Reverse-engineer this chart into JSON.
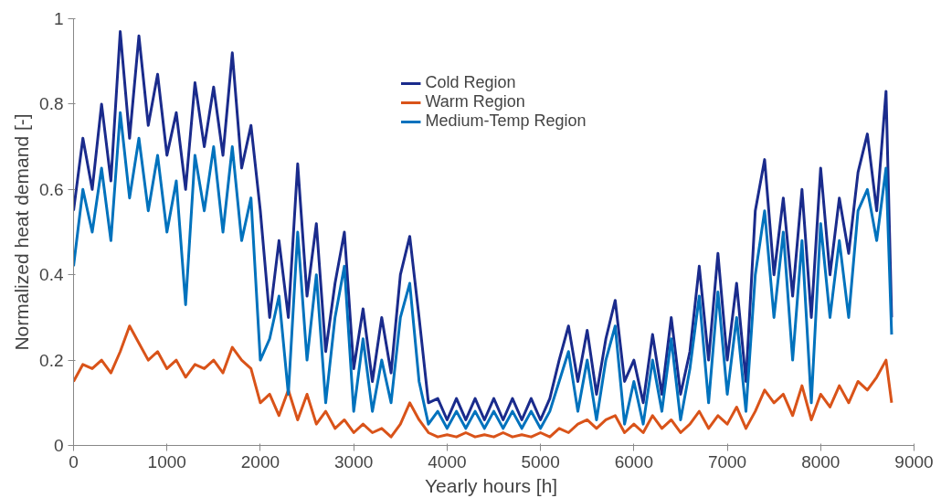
{
  "chart_data": {
    "type": "line",
    "xlabel": "Yearly hours  [h]",
    "ylabel": "Normalized heat demand [-]",
    "xlim": [
      0,
      9000
    ],
    "ylim": [
      0,
      1
    ],
    "xticks": [
      0,
      1000,
      2000,
      3000,
      4000,
      5000,
      6000,
      7000,
      8000,
      9000
    ],
    "yticks": [
      0,
      0.2,
      0.4,
      0.6,
      0.8,
      1
    ],
    "grid": false,
    "legend": "top",
    "line_style": "solid",
    "x": [
      0,
      100,
      200,
      300,
      400,
      500,
      600,
      700,
      800,
      900,
      1000,
      1100,
      1200,
      1300,
      1400,
      1500,
      1600,
      1700,
      1800,
      1900,
      2000,
      2100,
      2200,
      2300,
      2400,
      2500,
      2600,
      2700,
      2800,
      2900,
      3000,
      3100,
      3200,
      3300,
      3400,
      3500,
      3600,
      3700,
      3800,
      3900,
      4000,
      4100,
      4200,
      4300,
      4400,
      4500,
      4600,
      4700,
      4800,
      4900,
      5000,
      5100,
      5200,
      5300,
      5400,
      5500,
      5600,
      5700,
      5800,
      5900,
      6000,
      6100,
      6200,
      6300,
      6400,
      6500,
      6600,
      6700,
      6800,
      6900,
      7000,
      7100,
      7200,
      7300,
      7400,
      7500,
      7600,
      7700,
      7800,
      7900,
      8000,
      8100,
      8200,
      8300,
      8400,
      8500,
      8600,
      8700,
      8760
    ],
    "series": [
      {
        "name": "Cold Region",
        "color": "#1a2b8c",
        "values": [
          0.55,
          0.72,
          0.6,
          0.8,
          0.62,
          0.97,
          0.72,
          0.96,
          0.75,
          0.87,
          0.68,
          0.78,
          0.6,
          0.85,
          0.7,
          0.84,
          0.68,
          0.92,
          0.65,
          0.75,
          0.55,
          0.3,
          0.48,
          0.3,
          0.66,
          0.35,
          0.52,
          0.22,
          0.38,
          0.5,
          0.18,
          0.32,
          0.15,
          0.3,
          0.17,
          0.4,
          0.49,
          0.3,
          0.1,
          0.11,
          0.06,
          0.11,
          0.06,
          0.11,
          0.06,
          0.11,
          0.06,
          0.11,
          0.06,
          0.11,
          0.06,
          0.11,
          0.2,
          0.28,
          0.15,
          0.27,
          0.12,
          0.25,
          0.34,
          0.15,
          0.2,
          0.1,
          0.26,
          0.12,
          0.3,
          0.12,
          0.22,
          0.42,
          0.2,
          0.45,
          0.2,
          0.38,
          0.15,
          0.55,
          0.67,
          0.4,
          0.58,
          0.35,
          0.6,
          0.3,
          0.65,
          0.4,
          0.58,
          0.45,
          0.64,
          0.73,
          0.55,
          0.83,
          0.3
        ]
      },
      {
        "name": "Warm Region",
        "color": "#d95319",
        "values": [
          0.15,
          0.19,
          0.18,
          0.2,
          0.17,
          0.22,
          0.28,
          0.24,
          0.2,
          0.22,
          0.18,
          0.2,
          0.16,
          0.19,
          0.18,
          0.2,
          0.17,
          0.23,
          0.2,
          0.18,
          0.1,
          0.12,
          0.07,
          0.13,
          0.06,
          0.12,
          0.05,
          0.08,
          0.04,
          0.06,
          0.03,
          0.05,
          0.03,
          0.04,
          0.02,
          0.05,
          0.1,
          0.06,
          0.03,
          0.02,
          0.025,
          0.02,
          0.03,
          0.02,
          0.025,
          0.02,
          0.03,
          0.02,
          0.025,
          0.02,
          0.03,
          0.02,
          0.04,
          0.03,
          0.05,
          0.06,
          0.04,
          0.06,
          0.07,
          0.03,
          0.05,
          0.03,
          0.07,
          0.04,
          0.06,
          0.03,
          0.05,
          0.08,
          0.04,
          0.07,
          0.05,
          0.09,
          0.04,
          0.08,
          0.13,
          0.1,
          0.12,
          0.07,
          0.14,
          0.06,
          0.12,
          0.09,
          0.14,
          0.1,
          0.15,
          0.13,
          0.16,
          0.2,
          0.1
        ]
      },
      {
        "name": "Medium-Temp Region",
        "color": "#0072bd",
        "values": [
          0.42,
          0.6,
          0.5,
          0.65,
          0.48,
          0.78,
          0.58,
          0.72,
          0.55,
          0.68,
          0.5,
          0.62,
          0.33,
          0.68,
          0.55,
          0.7,
          0.5,
          0.7,
          0.48,
          0.58,
          0.2,
          0.25,
          0.35,
          0.12,
          0.5,
          0.2,
          0.4,
          0.1,
          0.3,
          0.42,
          0.08,
          0.25,
          0.08,
          0.2,
          0.1,
          0.3,
          0.38,
          0.15,
          0.05,
          0.08,
          0.04,
          0.08,
          0.04,
          0.08,
          0.04,
          0.08,
          0.04,
          0.08,
          0.04,
          0.08,
          0.04,
          0.08,
          0.15,
          0.22,
          0.08,
          0.2,
          0.06,
          0.2,
          0.28,
          0.05,
          0.15,
          0.05,
          0.2,
          0.08,
          0.25,
          0.06,
          0.18,
          0.35,
          0.1,
          0.36,
          0.12,
          0.3,
          0.08,
          0.4,
          0.55,
          0.3,
          0.5,
          0.2,
          0.48,
          0.1,
          0.52,
          0.3,
          0.48,
          0.3,
          0.55,
          0.6,
          0.48,
          0.65,
          0.26
        ]
      }
    ]
  }
}
